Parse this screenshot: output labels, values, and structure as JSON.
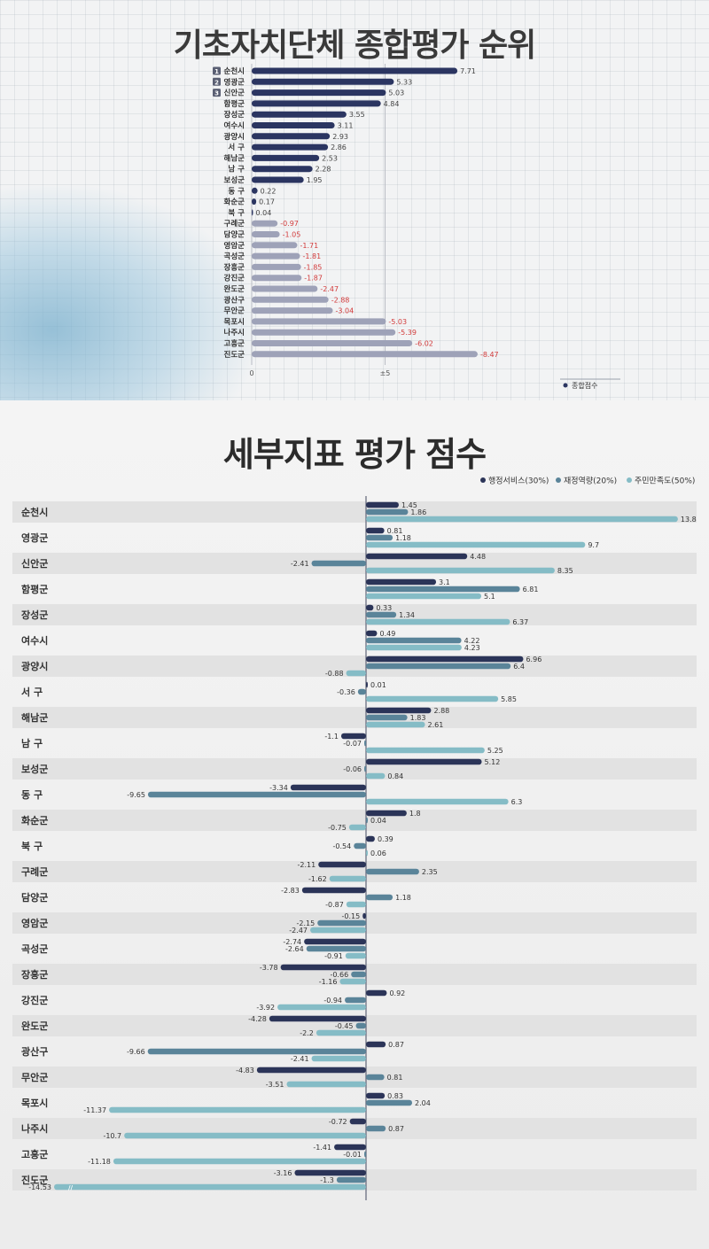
{
  "title_ranking": "기초자치단체 종합평가 순위",
  "title_detail": "세부지표 평가 점수",
  "colors": {
    "navy": "#2b3561",
    "gray": "#9ea2b8",
    "admin": "#2b3458",
    "finance": "#5a8499",
    "satisfaction": "#85bcc6",
    "negative_label": "#d23b3b"
  },
  "chart_data": [
    {
      "type": "bar",
      "orientation": "horizontal",
      "title": "기초자치단체 종합평가 순위",
      "categories": [
        "순천시",
        "영광군",
        "신안군",
        "함평군",
        "장성군",
        "여수시",
        "광양시",
        "서 구",
        "해남군",
        "남 구",
        "보성군",
        "동 구",
        "화순군",
        "북 구",
        "구례군",
        "담양군",
        "영암군",
        "곡성군",
        "장흥군",
        "강진군",
        "완도군",
        "광산구",
        "무안군",
        "목포시",
        "나주시",
        "고흥군",
        "진도군"
      ],
      "rank_badges": [
        "1",
        "2",
        "3"
      ],
      "series": [
        {
          "name": "종합점수",
          "values": [
            7.71,
            5.33,
            5.03,
            4.84,
            3.55,
            3.11,
            2.93,
            2.86,
            2.53,
            2.28,
            1.95,
            0.22,
            0.17,
            0.04,
            -0.97,
            -1.05,
            -1.71,
            -1.81,
            -1.85,
            -1.87,
            -2.47,
            -2.88,
            -3.04,
            -5.03,
            -5.39,
            -6.02,
            -8.47
          ]
        }
      ],
      "x_tick_labels": [
        "0",
        "±5"
      ],
      "legend_position": "bottom-right"
    },
    {
      "type": "bar",
      "orientation": "horizontal",
      "title": "세부지표 평가 점수",
      "categories": [
        "순천시",
        "영광군",
        "신안군",
        "함평군",
        "장성군",
        "여수시",
        "광양시",
        "서 구",
        "해남군",
        "남 구",
        "보성군",
        "동 구",
        "화순군",
        "북 구",
        "구례군",
        "담양군",
        "영암군",
        "곡성군",
        "장흥군",
        "강진군",
        "완도군",
        "광산구",
        "무안군",
        "목포시",
        "나주시",
        "고흥군",
        "진도군"
      ],
      "series": [
        {
          "name": "행정서비스(30%)",
          "values": [
            1.45,
            0.81,
            4.48,
            3.1,
            0.33,
            0.49,
            6.96,
            0.01,
            2.88,
            -1.1,
            5.12,
            -3.34,
            1.8,
            0.39,
            -2.11,
            -2.83,
            -0.15,
            -2.74,
            -3.78,
            0.92,
            -4.28,
            0.87,
            -4.83,
            0.83,
            -0.72,
            -1.41,
            -3.16
          ]
        },
        {
          "name": "재정역량(20%)",
          "values": [
            1.86,
            1.18,
            -2.41,
            6.81,
            1.34,
            4.22,
            6.4,
            -0.36,
            1.83,
            -0.07,
            -0.06,
            -9.65,
            0.04,
            -0.54,
            2.35,
            1.18,
            -2.15,
            -2.64,
            -0.66,
            -0.94,
            -0.45,
            -9.66,
            0.81,
            2.04,
            0.87,
            -0.01,
            -1.3
          ]
        },
        {
          "name": "주민만족도(50%)",
          "values": [
            13.8,
            9.7,
            8.35,
            5.1,
            6.37,
            4.23,
            -0.88,
            5.85,
            2.61,
            5.25,
            0.84,
            6.3,
            -0.75,
            0.06,
            -1.62,
            -0.87,
            -2.47,
            -0.91,
            -1.16,
            -3.92,
            -2.2,
            -2.41,
            -3.51,
            -11.37,
            -10.7,
            -11.18,
            -14.53
          ]
        }
      ],
      "legend_position": "top-right",
      "axis_breaks": true
    }
  ]
}
